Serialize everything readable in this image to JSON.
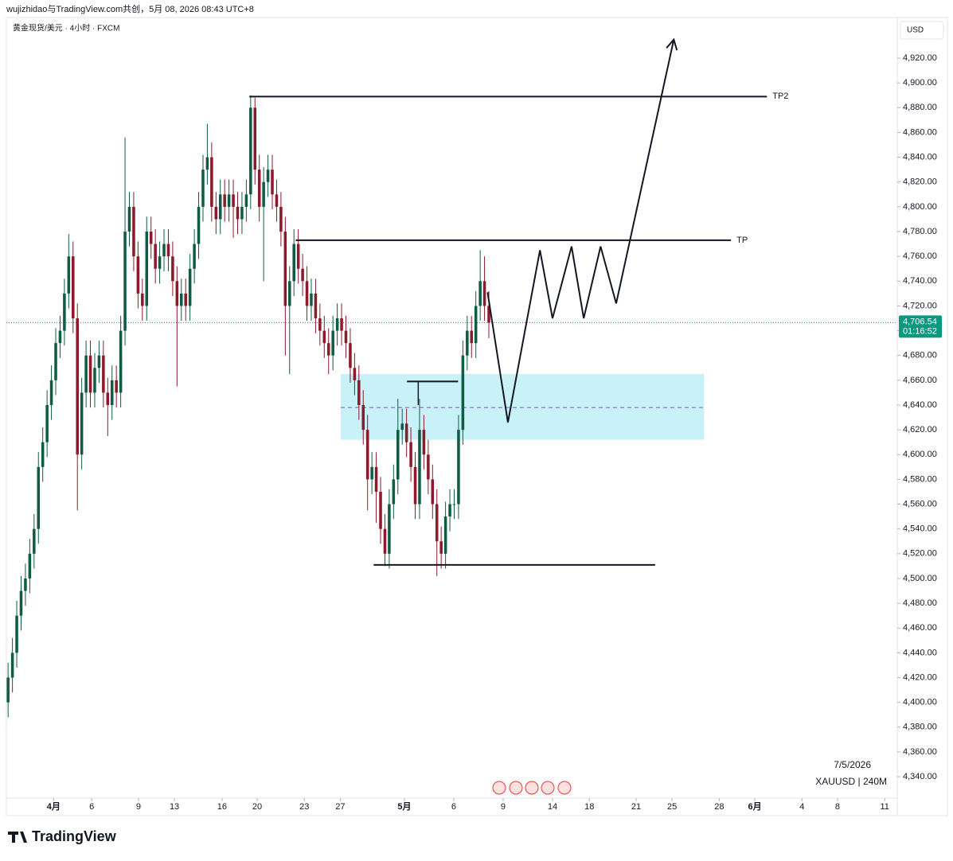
{
  "header": {
    "credit": "wujizhidao与TradingView.com共创，5月 08, 2026 08:43 UTC+8",
    "symbol": "黄金现货/美元 · 4小时 · FXCM",
    "currency": "USD",
    "date": "7/5/2026",
    "ticker": "XAUUSD | 240M",
    "brand": "TradingView"
  },
  "chart_data": {
    "type": "candlestick",
    "up_color": "#0f5c45",
    "down_color": "#8b1a2b",
    "open": [
      4400,
      4420,
      4440,
      4470,
      4490,
      4500,
      4520,
      4540,
      4590,
      4610,
      4640,
      4660,
      4690,
      4700,
      4730,
      4760,
      4710,
      4600,
      4650,
      4680,
      4650,
      4670,
      4680,
      4650,
      4640,
      4660,
      4650,
      4700,
      4780,
      4800,
      4760,
      4730,
      4720,
      4780,
      4770,
      4750,
      4760,
      4770,
      4760,
      4740,
      4720,
      4730,
      4720,
      4750,
      4770,
      4800,
      4830,
      4840,
      4800,
      4790,
      4810,
      4800,
      4810,
      4800,
      4790,
      4800,
      4810,
      4880,
      4830,
      4800,
      4820,
      4830,
      4810,
      4800,
      4780,
      4720,
      4740,
      4770,
      4750,
      4740,
      4720,
      4730,
      4710,
      4700,
      4690,
      4680,
      4700,
      4710,
      4700,
      4690,
      4670,
      4660,
      4640,
      4620,
      4580,
      4590,
      4570,
      4540,
      4520,
      4560,
      4580,
      4620,
      4625,
      4610,
      4590,
      4560,
      4620,
      4600,
      4580,
      4560,
      4530,
      4520,
      4550,
      4560,
      4560,
      4620,
      4680,
      4700,
      4690,
      4720,
      4740,
      4720
    ],
    "high": [
      4432,
      4452,
      4482,
      4502,
      4512,
      4532,
      4552,
      4602,
      4622,
      4652,
      4672,
      4702,
      4712,
      4742,
      4778,
      4772,
      4722,
      4662,
      4692,
      4692,
      4682,
      4692,
      4692,
      4662,
      4672,
      4672,
      4712,
      4856,
      4812,
      4812,
      4772,
      4742,
      4792,
      4792,
      4782,
      4772,
      4782,
      4782,
      4772,
      4752,
      4742,
      4742,
      4762,
      4782,
      4812,
      4842,
      4867,
      4852,
      4812,
      4822,
      4822,
      4822,
      4822,
      4812,
      4812,
      4822,
      4890,
      4888,
      4842,
      4832,
      4842,
      4842,
      4822,
      4812,
      4792,
      4752,
      4782,
      4782,
      4762,
      4752,
      4742,
      4742,
      4722,
      4712,
      4702,
      4712,
      4722,
      4722,
      4712,
      4702,
      4682,
      4672,
      4652,
      4632,
      4602,
      4602,
      4582,
      4552,
      4572,
      4592,
      4645,
      4637,
      4637,
      4622,
      4602,
      4645,
      4632,
      4612,
      4592,
      4572,
      4542,
      4562,
      4572,
      4572,
      4632,
      4692,
      4712,
      4712,
      4732,
      4765,
      4760,
      4732
    ],
    "low": [
      4388,
      4408,
      4428,
      4458,
      4478,
      4488,
      4508,
      4528,
      4578,
      4598,
      4628,
      4648,
      4678,
      4688,
      4718,
      4698,
      4555,
      4588,
      4638,
      4638,
      4638,
      4658,
      4638,
      4615,
      4628,
      4638,
      4638,
      4688,
      4768,
      4748,
      4718,
      4708,
      4708,
      4758,
      4738,
      4738,
      4748,
      4748,
      4728,
      4655,
      4708,
      4708,
      4708,
      4738,
      4758,
      4788,
      4818,
      4788,
      4778,
      4778,
      4788,
      4788,
      4775,
      4778,
      4778,
      4788,
      4798,
      4818,
      4788,
      4740,
      4808,
      4798,
      4788,
      4768,
      4680,
      4665,
      4728,
      4738,
      4728,
      4708,
      4708,
      4698,
      4688,
      4678,
      4665,
      4668,
      4688,
      4688,
      4678,
      4658,
      4648,
      4628,
      4608,
      4555,
      4568,
      4545,
      4528,
      4510,
      4508,
      4548,
      4568,
      4608,
      4598,
      4578,
      4548,
      4548,
      4588,
      4568,
      4548,
      4502,
      4508,
      4508,
      4538,
      4548,
      4548,
      4608,
      4668,
      4678,
      4678,
      4708,
      4708,
      4694
    ],
    "close": [
      4420,
      4440,
      4470,
      4490,
      4500,
      4520,
      4540,
      4590,
      4610,
      4640,
      4660,
      4690,
      4700,
      4730,
      4760,
      4710,
      4600,
      4650,
      4680,
      4650,
      4670,
      4680,
      4650,
      4640,
      4660,
      4650,
      4700,
      4780,
      4800,
      4760,
      4730,
      4720,
      4780,
      4770,
      4750,
      4760,
      4770,
      4760,
      4740,
      4720,
      4730,
      4720,
      4750,
      4770,
      4800,
      4830,
      4840,
      4800,
      4790,
      4810,
      4800,
      4810,
      4800,
      4790,
      4800,
      4810,
      4880,
      4830,
      4800,
      4820,
      4830,
      4810,
      4800,
      4780,
      4720,
      4740,
      4770,
      4750,
      4740,
      4720,
      4730,
      4710,
      4700,
      4690,
      4680,
      4700,
      4710,
      4700,
      4690,
      4670,
      4660,
      4640,
      4620,
      4580,
      4590,
      4570,
      4540,
      4520,
      4560,
      4580,
      4620,
      4625,
      4610,
      4590,
      4560,
      4620,
      4600,
      4580,
      4560,
      4530,
      4520,
      4550,
      4560,
      4560,
      4620,
      4680,
      4700,
      4690,
      4720,
      4740,
      4720,
      4706.54
    ],
    "xlim": [
      -0.4,
      205.3
    ],
    "xticks": [
      {
        "value": 10.5,
        "label": "4月"
      },
      {
        "value": 19.3,
        "label": "6"
      },
      {
        "value": 30.1,
        "label": "9"
      },
      {
        "value": 38.4,
        "label": "13"
      },
      {
        "value": 49.4,
        "label": "16"
      },
      {
        "value": 57.5,
        "label": "20"
      },
      {
        "value": 68.4,
        "label": "23"
      },
      {
        "value": 76.7,
        "label": "27"
      },
      {
        "value": 91.5,
        "label": "5月"
      },
      {
        "value": 102.9,
        "label": "6"
      },
      {
        "value": 114.3,
        "label": "9"
      },
      {
        "value": 125.7,
        "label": "14"
      },
      {
        "value": 134.2,
        "label": "18"
      },
      {
        "value": 145.0,
        "label": "21"
      },
      {
        "value": 153.3,
        "label": "25"
      },
      {
        "value": 164.2,
        "label": "28"
      },
      {
        "value": 172.4,
        "label": "6月"
      },
      {
        "value": 183.3,
        "label": "4"
      },
      {
        "value": 191.5,
        "label": "8"
      },
      {
        "value": 202.4,
        "label": "11"
      }
    ],
    "ylim": [
      4322.7,
      4952.8
    ],
    "yticks": [
      {
        "value": 4340,
        "label": "4,340.00"
      },
      {
        "value": 4360,
        "label": "4,360.00"
      },
      {
        "value": 4380,
        "label": "4,380.00"
      },
      {
        "value": 4400,
        "label": "4,400.00"
      },
      {
        "value": 4420,
        "label": "4,420.00"
      },
      {
        "value": 4440,
        "label": "4,440.00"
      },
      {
        "value": 4460,
        "label": "4,460.00"
      },
      {
        "value": 4480,
        "label": "4,480.00"
      },
      {
        "value": 4500,
        "label": "4,500.00"
      },
      {
        "value": 4520,
        "label": "4,520.00"
      },
      {
        "value": 4540,
        "label": "4,540.00"
      },
      {
        "value": 4560,
        "label": "4,560.00"
      },
      {
        "value": 4580,
        "label": "4,580.00"
      },
      {
        "value": 4600,
        "label": "4,600.00"
      },
      {
        "value": 4620,
        "label": "4,620.00"
      },
      {
        "value": 4640,
        "label": "4,640.00"
      },
      {
        "value": 4660,
        "label": "4,660.00"
      },
      {
        "value": 4680,
        "label": "4,680.00"
      },
      {
        "value": 4700,
        "label": "4,700.00"
      },
      {
        "value": 4720,
        "label": "4,720.00"
      },
      {
        "value": 4740,
        "label": "4,740.00"
      },
      {
        "value": 4760,
        "label": "4,760.00"
      },
      {
        "value": 4780,
        "label": "4,780.00"
      },
      {
        "value": 4800,
        "label": "4,800.00"
      },
      {
        "value": 4820,
        "label": "4,820.00"
      },
      {
        "value": 4840,
        "label": "4,840.00"
      },
      {
        "value": 4860,
        "label": "4,860.00"
      },
      {
        "value": 4880,
        "label": "4,880.00"
      },
      {
        "value": 4900,
        "label": "4,900.00"
      },
      {
        "value": 4920,
        "label": "4,920.00"
      }
    ],
    "last_price": {
      "value": 4706.54,
      "label": "4,706.54"
    },
    "countdown": "01:16:52",
    "last_color": "#089981",
    "levels": [
      {
        "name": "TP2",
        "price": 4889,
        "x": [
          55.7,
          175.2
        ]
      },
      {
        "name": "TP",
        "price": 4773,
        "x": [
          66.4,
          166.9
        ]
      },
      {
        "price": 4511,
        "x": [
          84.4,
          149.4
        ]
      },
      {
        "price": 4659,
        "x": [
          92.1,
          103.9
        ]
      }
    ],
    "marker": {
      "x": 94.7,
      "y": [
        4659,
        4640
      ]
    },
    "zone": {
      "top": 4665,
      "bottom": 4612,
      "mid": 4638,
      "x": [
        76.8,
        160.7
      ],
      "color": "#c9f1f8",
      "mid_color": "#7e57c2"
    },
    "projection": {
      "x": [
        110.7,
        115.4,
        122.8,
        125.7,
        130.1,
        132.9,
        136.8,
        140.4,
        153.7
      ],
      "y": [
        4731,
        4626,
        4765,
        4710,
        4768,
        4710,
        4768,
        4722,
        4935
      ]
    }
  }
}
